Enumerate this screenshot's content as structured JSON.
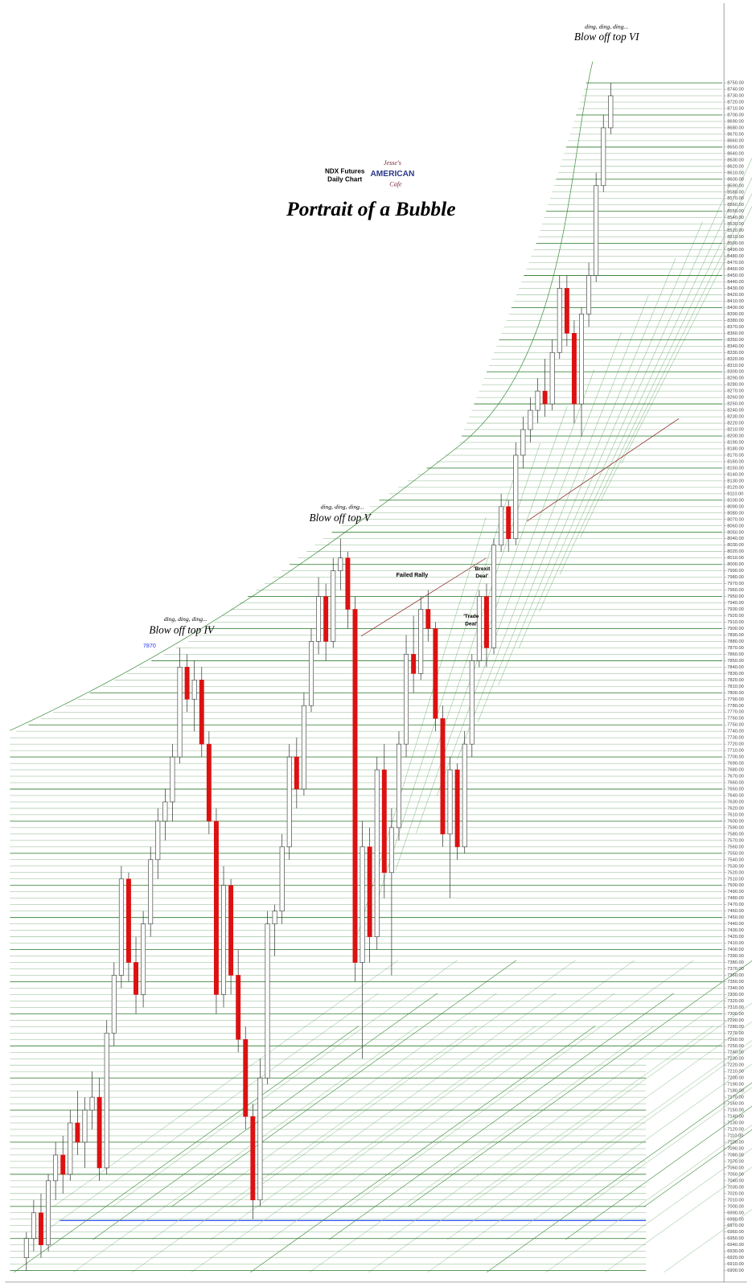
{
  "chart_data": {
    "type": "candlestick",
    "title": "Portrait of a Bubble",
    "subtitle": [
      "NDX  Futures",
      "Daily Chart"
    ],
    "logo": [
      "Jesse's",
      "AMERICAN",
      "Cafe"
    ],
    "up_color": "#ffffff",
    "down_color": "#dd1111",
    "grid_color": "#2e7d2e",
    "ylim": [
      6900,
      8750
    ],
    "yticks": [
      {
        "value": 6900,
        "label": "6900.00"
      },
      {
        "value": 6910,
        "label": "6910.00"
      },
      {
        "value": 6920,
        "label": "6920.00"
      },
      {
        "value": 6930,
        "label": "6930.00"
      },
      {
        "value": 6940,
        "label": "6940.00"
      },
      {
        "value": 6950,
        "label": "6950.00"
      },
      {
        "value": 6960,
        "label": "6960.00"
      },
      {
        "value": 6970,
        "label": "6970.00"
      },
      {
        "value": 6980,
        "label": "6980.00"
      },
      {
        "value": 6990,
        "label": "6990.00"
      },
      {
        "value": 7000,
        "label": "7000.00"
      },
      {
        "value": 7010,
        "label": "7010.00"
      },
      {
        "value": 7020,
        "label": "7020.00"
      },
      {
        "value": 7030,
        "label": "7030.00"
      },
      {
        "value": 7040,
        "label": "7040.00"
      },
      {
        "value": 7050,
        "label": "7050.00"
      },
      {
        "value": 7060,
        "label": "7060.00"
      },
      {
        "value": 7070,
        "label": "7070.00"
      },
      {
        "value": 7080,
        "label": "7080.00"
      },
      {
        "value": 7090,
        "label": "7090.00"
      },
      {
        "value": 7100,
        "label": "7100.00"
      },
      {
        "value": 7110,
        "label": "7110.00"
      },
      {
        "value": 7120,
        "label": "7120.00"
      },
      {
        "value": 7130,
        "label": "7130.00"
      },
      {
        "value": 7140,
        "label": "7140.00"
      },
      {
        "value": 7150,
        "label": "7150.00"
      },
      {
        "value": 7160,
        "label": "7160.00"
      },
      {
        "value": 7170,
        "label": "7170.00"
      },
      {
        "value": 7180,
        "label": "7180.00"
      },
      {
        "value": 7190,
        "label": "7190.00"
      },
      {
        "value": 7200,
        "label": "7200.00"
      },
      {
        "value": 7210,
        "label": "7210.00"
      },
      {
        "value": 7220,
        "label": "7220.00"
      },
      {
        "value": 7230,
        "label": "7230.00"
      },
      {
        "value": 7240,
        "label": "7240.00"
      },
      {
        "value": 7250,
        "label": "7250.00"
      },
      {
        "value": 7260,
        "label": "7260.00"
      },
      {
        "value": 7270,
        "label": "7270.00"
      },
      {
        "value": 7280,
        "label": "7280.00"
      },
      {
        "value": 7290,
        "label": "7290.00"
      },
      {
        "value": 7300,
        "label": "7300.00"
      },
      {
        "value": 7310,
        "label": "7310.00"
      },
      {
        "value": 7320,
        "label": "7320.00"
      },
      {
        "value": 7330,
        "label": "7330.00"
      },
      {
        "value": 7340,
        "label": "7340.00"
      },
      {
        "value": 7350,
        "label": "7350.00"
      },
      {
        "value": 7360,
        "label": "7360.00"
      },
      {
        "value": 7370,
        "label": "7370.00"
      },
      {
        "value": 7380,
        "label": "7380.00"
      },
      {
        "value": 7390,
        "label": "7390.00"
      },
      {
        "value": 7400,
        "label": "7400.00"
      },
      {
        "value": 7410,
        "label": "7410.00"
      },
      {
        "value": 7420,
        "label": "7420.00"
      },
      {
        "value": 7430,
        "label": "7430.00"
      },
      {
        "value": 7440,
        "label": "7440.00"
      },
      {
        "value": 7450,
        "label": "7450.00"
      },
      {
        "value": 7460,
        "label": "7460.00"
      },
      {
        "value": 7470,
        "label": "7470.00"
      },
      {
        "value": 7480,
        "label": "7480.00"
      },
      {
        "value": 7490,
        "label": "7490.00"
      },
      {
        "value": 7500,
        "label": "7500.00"
      },
      {
        "value": 7510,
        "label": "7510.00"
      },
      {
        "value": 7520,
        "label": "7520.00"
      },
      {
        "value": 7530,
        "label": "7530.00"
      },
      {
        "value": 7540,
        "label": "7540.00"
      },
      {
        "value": 7550,
        "label": "7550.00"
      },
      {
        "value": 7560,
        "label": "7560.00"
      },
      {
        "value": 7570,
        "label": "7570.00"
      },
      {
        "value": 7580,
        "label": "7580.00"
      },
      {
        "value": 7590,
        "label": "7590.00"
      },
      {
        "value": 7600,
        "label": "7600.00"
      },
      {
        "value": 7610,
        "label": "7610.00"
      },
      {
        "value": 7620,
        "label": "7620.00"
      },
      {
        "value": 7630,
        "label": "7630.00"
      },
      {
        "value": 7640,
        "label": "7640.00"
      },
      {
        "value": 7650,
        "label": "7650.00"
      },
      {
        "value": 7660,
        "label": "7660.00"
      },
      {
        "value": 7670,
        "label": "7670.00"
      },
      {
        "value": 7680,
        "label": "7680.00"
      },
      {
        "value": 7690,
        "label": "7690.00"
      },
      {
        "value": 7700,
        "label": "7700.00"
      },
      {
        "value": 7710,
        "label": "7710.00"
      },
      {
        "value": 7720,
        "label": "7720.00"
      },
      {
        "value": 7730,
        "label": "7730.00"
      },
      {
        "value": 7740,
        "label": "7740.00"
      },
      {
        "value": 7750,
        "label": "7750.00"
      },
      {
        "value": 7760,
        "label": "7760.00"
      },
      {
        "value": 7770,
        "label": "7770.00"
      },
      {
        "value": 7780,
        "label": "7780.00"
      },
      {
        "value": 7790,
        "label": "7790.00"
      },
      {
        "value": 7800,
        "label": "7800.00"
      },
      {
        "value": 7810,
        "label": "7810.00"
      },
      {
        "value": 7820,
        "label": "7820.00"
      },
      {
        "value": 7830,
        "label": "7830.00"
      },
      {
        "value": 7840,
        "label": "7840.00"
      },
      {
        "value": 7850,
        "label": "7850.00"
      },
      {
        "value": 7860,
        "label": "7860.00"
      },
      {
        "value": 7870,
        "label": "7870.00"
      },
      {
        "value": 7880,
        "label": "7880.00"
      },
      {
        "value": 7890,
        "label": "7890.00"
      },
      {
        "value": 7900,
        "label": "7900.00"
      },
      {
        "value": 7910,
        "label": "7910.00"
      },
      {
        "value": 7920,
        "label": "7920.00"
      },
      {
        "value": 7930,
        "label": "7930.00"
      },
      {
        "value": 7940,
        "label": "7940.00"
      },
      {
        "value": 7950,
        "label": "7950.00"
      },
      {
        "value": 7960,
        "label": "7960.00"
      },
      {
        "value": 7970,
        "label": "7970.00"
      },
      {
        "value": 7980,
        "label": "7980.00"
      },
      {
        "value": 7990,
        "label": "7990.00"
      },
      {
        "value": 8000,
        "label": "8000.00"
      },
      {
        "value": 8010,
        "label": "8010.00"
      },
      {
        "value": 8020,
        "label": "8020.00"
      },
      {
        "value": 8030,
        "label": "8030.00"
      },
      {
        "value": 8040,
        "label": "8040.00"
      },
      {
        "value": 8050,
        "label": "8050.00"
      },
      {
        "value": 8060,
        "label": "8060.00"
      },
      {
        "value": 8070,
        "label": "8070.00"
      },
      {
        "value": 8080,
        "label": "8080.00"
      },
      {
        "value": 8090,
        "label": "8090.00"
      },
      {
        "value": 8100,
        "label": "8100.00"
      },
      {
        "value": 8110,
        "label": "8110.00"
      },
      {
        "value": 8120,
        "label": "8120.00"
      },
      {
        "value": 8130,
        "label": "8130.00"
      },
      {
        "value": 8140,
        "label": "8140.00"
      },
      {
        "value": 8150,
        "label": "8150.00"
      },
      {
        "value": 8160,
        "label": "8160.00"
      },
      {
        "value": 8170,
        "label": "8170.00"
      },
      {
        "value": 8180,
        "label": "8180.00"
      },
      {
        "value": 8190,
        "label": "8190.00"
      },
      {
        "value": 8200,
        "label": "8200.00"
      },
      {
        "value": 8210,
        "label": "8210.00"
      },
      {
        "value": 8220,
        "label": "8220.00"
      },
      {
        "value": 8230,
        "label": "8230.00"
      },
      {
        "value": 8240,
        "label": "8240.00"
      },
      {
        "value": 8250,
        "label": "8250.00"
      },
      {
        "value": 8260,
        "label": "8260.00"
      },
      {
        "value": 8270,
        "label": "8270.00"
      },
      {
        "value": 8280,
        "label": "8280.00"
      },
      {
        "value": 8290,
        "label": "8290.00"
      },
      {
        "value": 8300,
        "label": "8300.00"
      },
      {
        "value": 8310,
        "label": "8310.00"
      },
      {
        "value": 8320,
        "label": "8320.00"
      },
      {
        "value": 8330,
        "label": "8330.00"
      },
      {
        "value": 8340,
        "label": "8340.00"
      },
      {
        "value": 8350,
        "label": "8350.00"
      },
      {
        "value": 8360,
        "label": "8360.00"
      },
      {
        "value": 8370,
        "label": "8370.00"
      },
      {
        "value": 8380,
        "label": "8380.00"
      },
      {
        "value": 8390,
        "label": "8390.00"
      },
      {
        "value": 8400,
        "label": "8400.00"
      },
      {
        "value": 8410,
        "label": "8410.00"
      },
      {
        "value": 8420,
        "label": "8420.00"
      },
      {
        "value": 8430,
        "label": "8430.00"
      },
      {
        "value": 8440,
        "label": "8440.00"
      },
      {
        "value": 8450,
        "label": "8450.00"
      },
      {
        "value": 8460,
        "label": "8460.00"
      },
      {
        "value": 8470,
        "label": "8470.00"
      },
      {
        "value": 8480,
        "label": "8480.00"
      },
      {
        "value": 8490,
        "label": "8490.00"
      },
      {
        "value": 8500,
        "label": "8500.00"
      },
      {
        "value": 8510,
        "label": "8510.00"
      },
      {
        "value": 8520,
        "label": "8520.00"
      },
      {
        "value": 8530,
        "label": "8530.00"
      },
      {
        "value": 8540,
        "label": "8540.00"
      },
      {
        "value": 8550,
        "label": "8550.00"
      },
      {
        "value": 8560,
        "label": "8560.00"
      },
      {
        "value": 8570,
        "label": "8570.00"
      },
      {
        "value": 8580,
        "label": "8580.00"
      },
      {
        "value": 8590,
        "label": "8590.00"
      },
      {
        "value": 8600,
        "label": "8600.00"
      },
      {
        "value": 8610,
        "label": "8610.00"
      },
      {
        "value": 8620,
        "label": "8620.00"
      },
      {
        "value": 8630,
        "label": "8630.00"
      },
      {
        "value": 8640,
        "label": "8640.00"
      },
      {
        "value": 8650,
        "label": "8650.00"
      },
      {
        "value": 8660,
        "label": "8660.00"
      },
      {
        "value": 8670,
        "label": "8670.00"
      },
      {
        "value": 8680,
        "label": "8680.00"
      },
      {
        "value": 8690,
        "label": "8690.00"
      },
      {
        "value": 8700,
        "label": "8700.00"
      },
      {
        "value": 8710,
        "label": "8710.00"
      },
      {
        "value": 8720,
        "label": "8720.00"
      },
      {
        "value": 8730,
        "label": "8730.00"
      },
      {
        "value": 8740,
        "label": "8740.00"
      },
      {
        "value": 8750,
        "label": "8750.00"
      }
    ],
    "ohlc": [
      [
        6920,
        6960,
        6900,
        6950
      ],
      [
        6950,
        7010,
        6930,
        6990
      ],
      [
        6990,
        7020,
        6920,
        6940
      ],
      [
        6940,
        7050,
        6930,
        7040
      ],
      [
        7040,
        7100,
        7010,
        7080
      ],
      [
        7080,
        7110,
        7020,
        7050
      ],
      [
        7050,
        7150,
        7040,
        7130
      ],
      [
        7130,
        7180,
        7080,
        7100
      ],
      [
        7100,
        7170,
        7060,
        7150
      ],
      [
        7150,
        7210,
        7120,
        7170
      ],
      [
        7170,
        7200,
        7040,
        7060
      ],
      [
        7060,
        7290,
        7050,
        7270
      ],
      [
        7270,
        7380,
        7250,
        7360
      ],
      [
        7360,
        7530,
        7340,
        7510
      ],
      [
        7510,
        7520,
        7350,
        7380
      ],
      [
        7380,
        7420,
        7300,
        7330
      ],
      [
        7330,
        7460,
        7310,
        7440
      ],
      [
        7440,
        7560,
        7420,
        7540
      ],
      [
        7540,
        7620,
        7510,
        7600
      ],
      [
        7600,
        7650,
        7570,
        7630
      ],
      [
        7630,
        7720,
        7600,
        7700
      ],
      [
        7700,
        7870,
        7690,
        7840
      ],
      [
        7840,
        7860,
        7770,
        7790
      ],
      [
        7790,
        7850,
        7740,
        7820
      ],
      [
        7820,
        7840,
        7700,
        7720
      ],
      [
        7720,
        7740,
        7580,
        7600
      ],
      [
        7600,
        7620,
        7300,
        7330
      ],
      [
        7330,
        7530,
        7310,
        7500
      ],
      [
        7500,
        7510,
        7330,
        7360
      ],
      [
        7360,
        7400,
        7240,
        7260
      ],
      [
        7260,
        7280,
        7120,
        7140
      ],
      [
        7140,
        7160,
        6980,
        7010
      ],
      [
        7010,
        7230,
        7000,
        7200
      ],
      [
        7200,
        7460,
        7190,
        7440
      ],
      [
        7440,
        7470,
        7390,
        7460
      ],
      [
        7460,
        7580,
        7440,
        7560
      ],
      [
        7560,
        7720,
        7540,
        7700
      ],
      [
        7700,
        7730,
        7620,
        7650
      ],
      [
        7650,
        7800,
        7640,
        7780
      ],
      [
        7780,
        7900,
        7770,
        7880
      ],
      [
        7880,
        7980,
        7860,
        7950
      ],
      [
        7950,
        7970,
        7850,
        7880
      ],
      [
        7880,
        8010,
        7870,
        7990
      ],
      [
        7990,
        8040,
        7960,
        8010
      ],
      [
        8010,
        8020,
        7900,
        7930
      ],
      [
        7930,
        7950,
        7350,
        7380
      ],
      [
        7380,
        7600,
        7230,
        7560
      ],
      [
        7560,
        7590,
        7380,
        7420
      ],
      [
        7420,
        7700,
        7400,
        7680
      ],
      [
        7680,
        7720,
        7480,
        7520
      ],
      [
        7520,
        7620,
        7360,
        7590
      ],
      [
        7590,
        7740,
        7570,
        7720
      ],
      [
        7720,
        7890,
        7700,
        7860
      ],
      [
        7860,
        7920,
        7800,
        7830
      ],
      [
        7830,
        7950,
        7820,
        7930
      ],
      [
        7930,
        7960,
        7880,
        7900
      ],
      [
        7900,
        7910,
        7740,
        7760
      ],
      [
        7760,
        7780,
        7560,
        7580
      ],
      [
        7580,
        7700,
        7480,
        7680
      ],
      [
        7680,
        7690,
        7540,
        7560
      ],
      [
        7560,
        7740,
        7550,
        7720
      ],
      [
        7720,
        7860,
        7700,
        7850
      ],
      [
        7850,
        7960,
        7840,
        7950
      ],
      [
        7950,
        7970,
        7840,
        7870
      ],
      [
        7870,
        8040,
        7860,
        8030
      ],
      [
        8030,
        8110,
        8020,
        8090
      ],
      [
        8090,
        8100,
        8020,
        8040
      ],
      [
        8040,
        8190,
        8030,
        8170
      ],
      [
        8170,
        8230,
        8150,
        8210
      ],
      [
        8210,
        8260,
        8190,
        8240
      ],
      [
        8240,
        8290,
        8220,
        8270
      ],
      [
        8270,
        8320,
        8230,
        8250
      ],
      [
        8250,
        8350,
        8240,
        8330
      ],
      [
        8330,
        8450,
        8320,
        8430
      ],
      [
        8430,
        8450,
        8340,
        8360
      ],
      [
        8360,
        8380,
        8220,
        8250
      ],
      [
        8250,
        8400,
        8200,
        8390
      ],
      [
        8390,
        8470,
        8370,
        8450
      ],
      [
        8450,
        8610,
        8440,
        8590
      ],
      [
        8590,
        8700,
        8580,
        8680
      ],
      [
        8680,
        8750,
        8670,
        8730
      ]
    ],
    "annotations": [
      "ding, ding, ding...",
      "Blow off top VI",
      "ding, ding, ding...",
      "Blow off top V",
      "ding, ding, ding...",
      "Blow off top IV",
      "7870",
      "Failed Rally",
      "'Brexit",
      "Deal'",
      "'Trade",
      "Deal'"
    ]
  }
}
